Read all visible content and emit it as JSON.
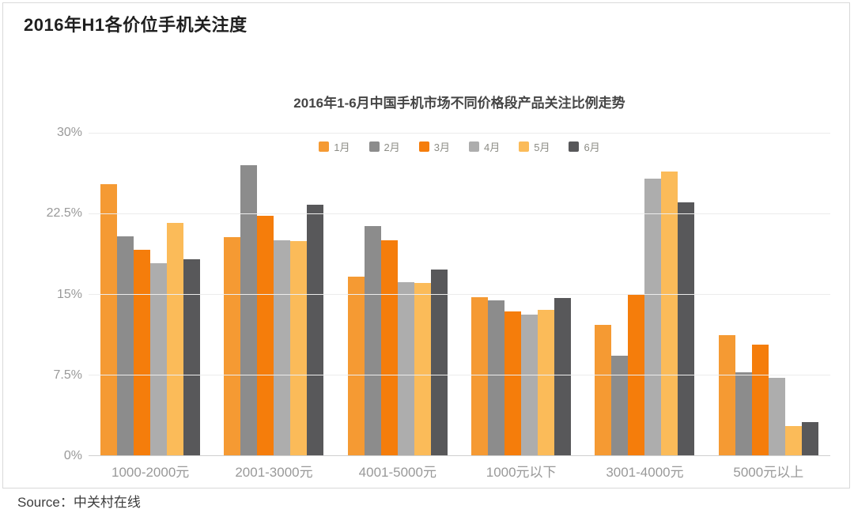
{
  "page_title": "2016年H1各价位手机关注度",
  "source": {
    "label": "Source：",
    "value": "中关村在线"
  },
  "chart_data": {
    "type": "bar",
    "title": "2016年1-6月中国手机市场不同价格段产品关注比例走势",
    "categories": [
      "1000-2000元",
      "2001-3000元",
      "4001-5000元",
      "1000元以下",
      "3001-4000元",
      "5000元以上"
    ],
    "series": [
      {
        "name": "1月",
        "color": "#F59A33",
        "values": [
          25.2,
          20.3,
          16.6,
          14.7,
          12.1,
          11.2
        ]
      },
      {
        "name": "2月",
        "color": "#8C8C8C",
        "values": [
          20.4,
          27.0,
          21.3,
          14.4,
          9.3,
          7.7
        ]
      },
      {
        "name": "3月",
        "color": "#F57D0B",
        "values": [
          19.1,
          22.3,
          20.0,
          13.4,
          15.0,
          10.3
        ]
      },
      {
        "name": "4月",
        "color": "#ADADAD",
        "values": [
          17.9,
          20.0,
          16.1,
          13.1,
          25.7,
          7.2
        ]
      },
      {
        "name": "5月",
        "color": "#FBBB59",
        "values": [
          21.6,
          19.9,
          16.0,
          13.5,
          26.4,
          2.7
        ]
      },
      {
        "name": "6月",
        "color": "#58585A",
        "values": [
          18.2,
          23.3,
          17.3,
          14.6,
          23.5,
          3.1
        ]
      }
    ],
    "ylabel": "",
    "ylim": [
      0,
      30
    ],
    "yticks": [
      {
        "label": "30%",
        "value": 30
      },
      {
        "label": "22.5%",
        "value": 22.5
      },
      {
        "label": "15%",
        "value": 15
      },
      {
        "label": "7.5%",
        "value": 7.5
      },
      {
        "label": "0%",
        "value": 0
      }
    ],
    "grid": true,
    "legend_position": "top-center",
    "colors": {
      "card_border": "#d9d9d9",
      "gridline": "#ececec",
      "baseline": "#cfcfcf",
      "axis_text": "#999999",
      "legend_text": "#8c8c85"
    }
  }
}
